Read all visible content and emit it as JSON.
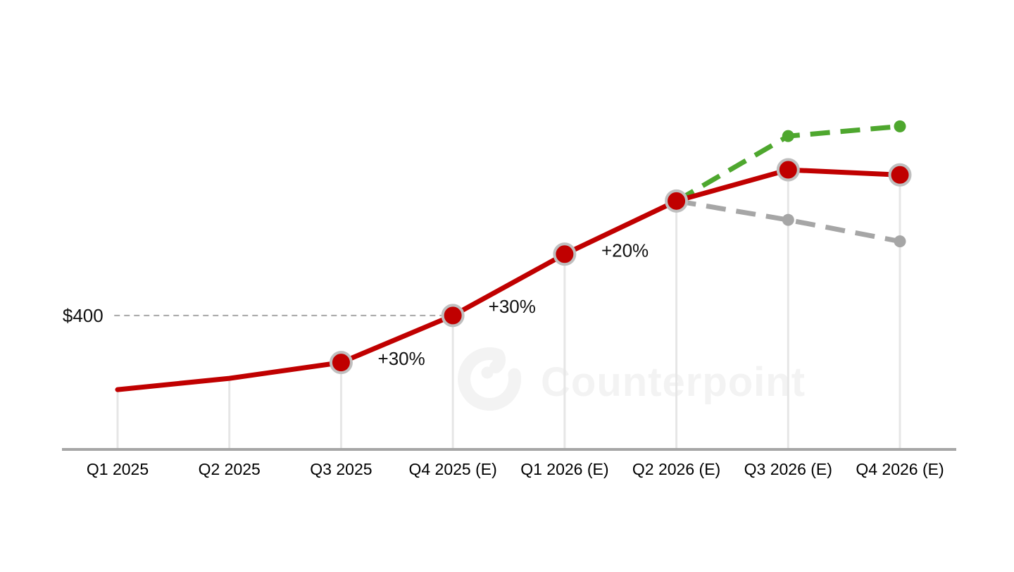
{
  "watermark": {
    "text": "Counterpoint",
    "logo_icon": "counterpoint-logo",
    "color": "#f3f3f3"
  },
  "chart_data": {
    "type": "line",
    "title": "",
    "xlabel": "",
    "ylabel": "",
    "grid": false,
    "legend": false,
    "ylim": [
      138,
      878
    ],
    "categories": [
      "Q1 2025",
      "Q2 2025",
      "Q3 2025",
      "Q4 2025 (E)",
      "Q1 2026 (E)",
      "Q2 2026 (E)",
      "Q3 2026 (E)",
      "Q4 2026 (E)"
    ],
    "series": [
      {
        "name": "red-main-line",
        "color": "#c00000",
        "line_style": "solid",
        "values": [
          255,
          277,
          308,
          400,
          520,
          624,
          685,
          675
        ],
        "marker": "large-circle-gray-ring",
        "marker_indices": [
          2,
          3,
          4,
          5,
          6,
          7
        ]
      },
      {
        "name": "green-upside-dashed",
        "color": "#4ea72e",
        "line_style": "dashed",
        "values": [
          null,
          null,
          null,
          null,
          null,
          624,
          751,
          770
        ],
        "marker": "dot",
        "marker_indices": [
          6,
          7
        ]
      },
      {
        "name": "gray-downside-dashed",
        "color": "#a6a6a6",
        "line_style": "dashed",
        "values": [
          null,
          null,
          null,
          null,
          null,
          624,
          587,
          545
        ],
        "marker": "dot",
        "marker_indices": [
          6,
          7
        ]
      }
    ],
    "annotations": [
      {
        "text": "+30%",
        "cat_x": 2.54,
        "value": 316
      },
      {
        "text": "+30%",
        "cat_x": 3.53,
        "value": 418
      },
      {
        "text": "+20%",
        "cat_x": 4.54,
        "value": 527
      }
    ],
    "reference_line": {
      "label": "$400",
      "value": 400,
      "from_cat": -0.03,
      "to_cat": 2.92,
      "label_cat": -0.31,
      "color": "#a6a6a6"
    },
    "axis": {
      "baseline_color": "#a6a6a6",
      "drop_line_color": "#e6e6e6",
      "tick_color": "#000000"
    }
  }
}
